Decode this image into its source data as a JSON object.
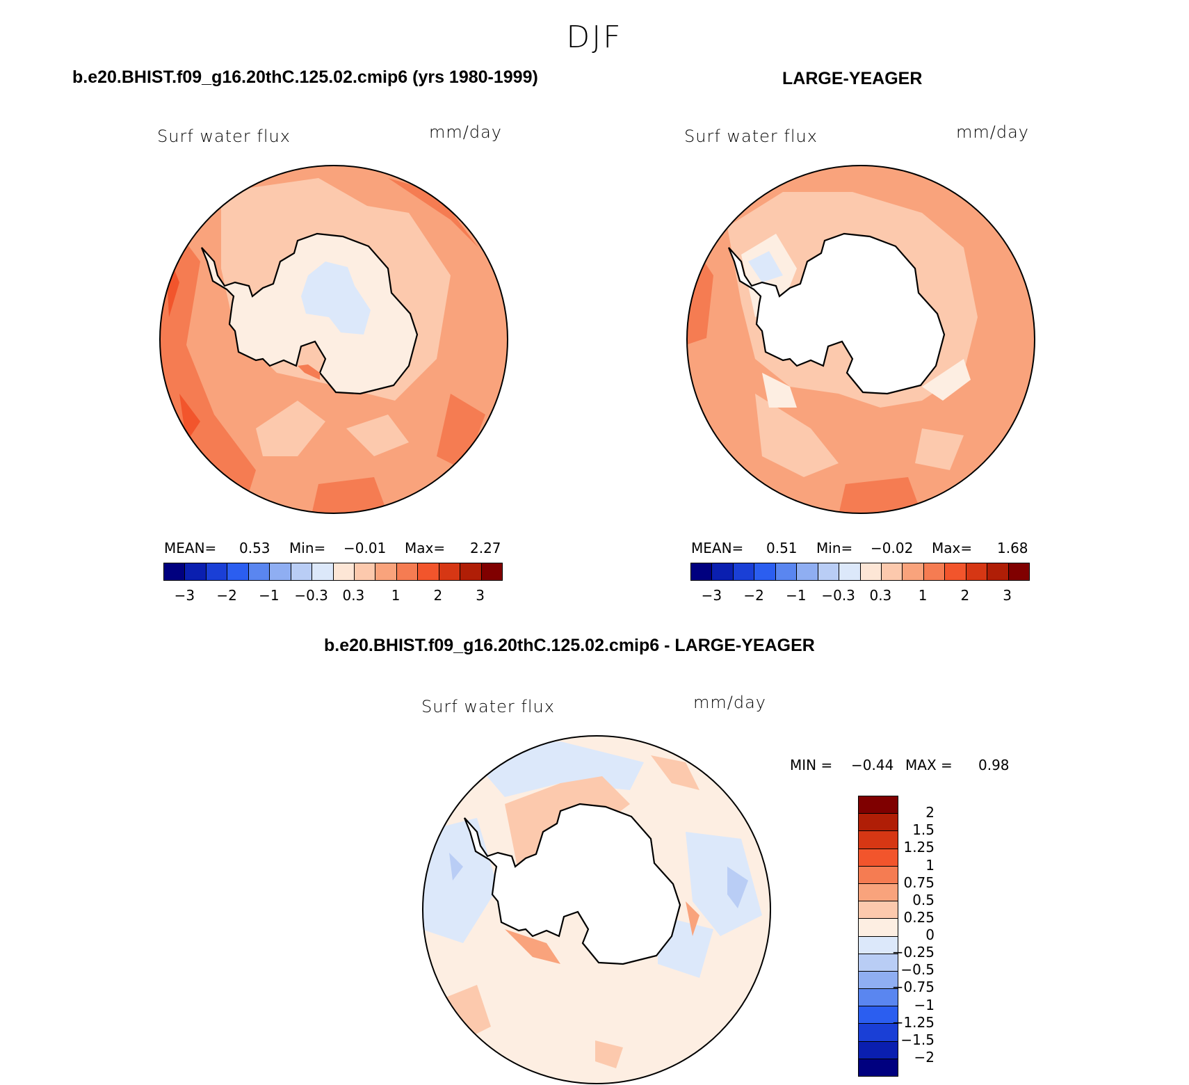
{
  "page": {
    "title": "DJF"
  },
  "panels": [
    {
      "case_title": "b.e20.BHIST.f09_g16.20thC.125.02.cmip6 (yrs 1980-1999)",
      "variable": "Surf water flux",
      "units": "mm/day",
      "stats": {
        "mean_label": "MEAN=",
        "mean": "0.53",
        "min_label": "Min=",
        "min": "−0.01",
        "max_label": "Max=",
        "max": "2.27"
      }
    },
    {
      "case_title": "LARGE-YEAGER",
      "variable": "Surf water flux",
      "units": "mm/day",
      "stats": {
        "mean_label": "MEAN=",
        "mean": "0.51",
        "min_label": "Min=",
        "min": "−0.02",
        "max_label": "Max=",
        "max": "1.68"
      }
    },
    {
      "case_title": "b.e20.BHIST.f09_g16.20thC.125.02.cmip6 - LARGE-YEAGER",
      "variable": "Surf water flux",
      "units": "mm/day",
      "stats": {
        "min_label": "MIN =",
        "min": "−0.44",
        "max_label": "MAX =",
        "max": "0.98"
      }
    }
  ],
  "colorbar_main": {
    "colors": [
      "#00007f",
      "#0a1fb0",
      "#1a3fd6",
      "#2b5ef0",
      "#5a86f0",
      "#8faef2",
      "#b9cdf5",
      "#dce8fa",
      "#fde6d6",
      "#fcc9ad",
      "#f9a37c",
      "#f57c52",
      "#f2552c",
      "#d63714",
      "#b01e06",
      "#800000"
    ],
    "ticks": [
      "−3",
      "−2",
      "−1",
      "−0.3",
      "0.3",
      "1",
      "2",
      "3"
    ]
  },
  "colorbar_diff": {
    "colors": [
      "#7f0000",
      "#b01e06",
      "#d63714",
      "#f2552c",
      "#f57c52",
      "#f9a37c",
      "#fcc9ad",
      "#fdeee2",
      "#dce8fa",
      "#b9cdf5",
      "#8faef2",
      "#5a86f0",
      "#2b5ef0",
      "#1a3fd6",
      "#0a1fb0",
      "#00007f"
    ],
    "ticks": [
      "2",
      "1.5",
      "1.25",
      "1",
      "0.75",
      "0.5",
      "0.25",
      "0",
      "−0.25",
      "−0.5",
      "−0.75",
      "−1",
      "−1.25",
      "−1.5",
      "−2"
    ]
  }
}
